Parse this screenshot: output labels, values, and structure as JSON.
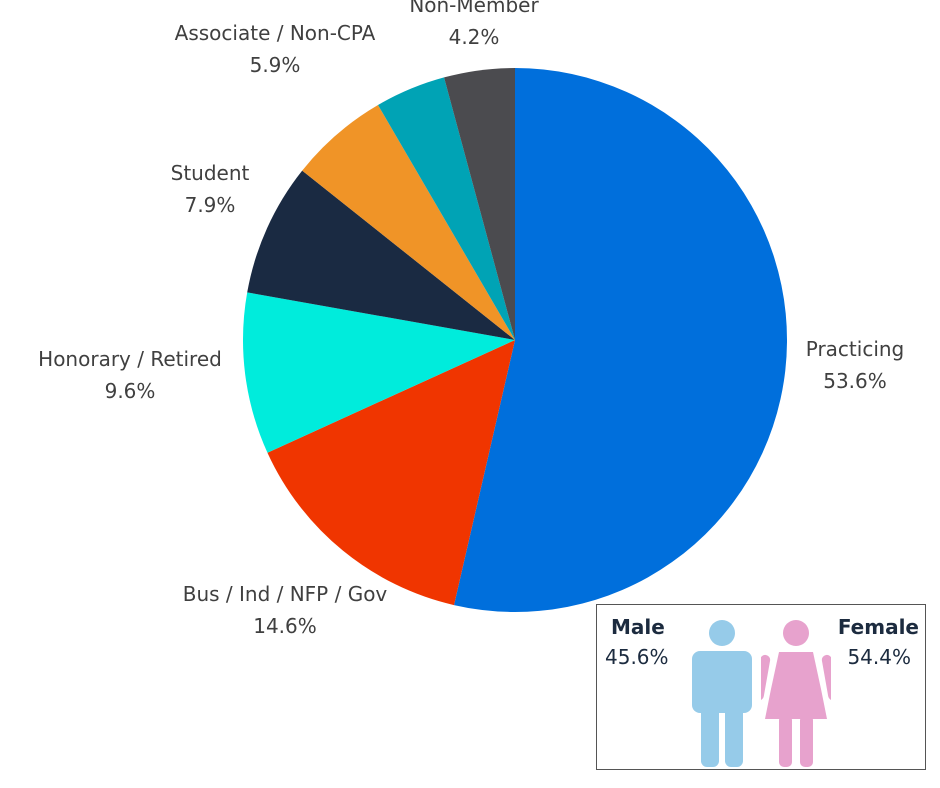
{
  "chart_data": {
    "type": "pie",
    "slices": [
      {
        "name": "Practicing",
        "value": 53.6,
        "label": "53.6%",
        "color": "#006fdc"
      },
      {
        "name": "Bus / Ind / NFP / Gov",
        "value": 14.6,
        "label": "14.6%",
        "color": "#f03500"
      },
      {
        "name": "Honorary / Retired",
        "value": 9.6,
        "label": "9.6%",
        "color": "#00ecdc"
      },
      {
        "name": "Student",
        "value": 7.9,
        "label": "7.9%",
        "color": "#1a2a42"
      },
      {
        "name": "Associate / Non-CPA",
        "value": 5.9,
        "label": "5.9%",
        "color": "#f09427"
      },
      {
        "name": "",
        "value": 4.2,
        "label": "",
        "color": "#00a3b5"
      },
      {
        "name": "Non-Member",
        "value": 4.2,
        "label": "4.2%",
        "color": "#4b4b4f"
      }
    ],
    "start_angle_deg": 0,
    "direction": "clockwise"
  },
  "gender": {
    "male": {
      "label": "Male",
      "value": "45.6%",
      "color": "#96cbe9"
    },
    "female": {
      "label": "Female",
      "value": "54.4%",
      "color": "#e7a2cd"
    }
  }
}
